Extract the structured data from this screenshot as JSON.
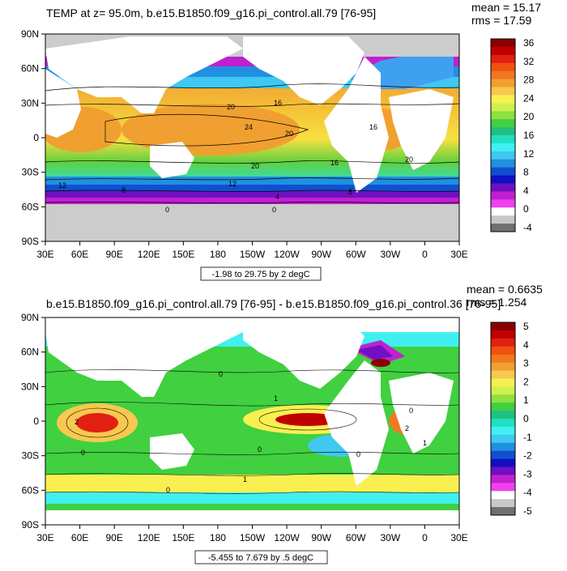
{
  "panels": [
    {
      "title": "TEMP at z=  95.0m, b.e15.B1850.f09_g16.pi_control.all.79 [76-95]",
      "stats": {
        "mean": "mean = 15.17",
        "rms": "rms = 17.59"
      },
      "range_label": "-1.98 to 29.75 by 2 degC",
      "colorbar": {
        "labels": [
          "36",
          "32",
          "28",
          "24",
          "20",
          "16",
          "12",
          "8",
          "4",
          "0",
          "-4"
        ],
        "colors": [
          "#8b0000",
          "#c00000",
          "#e02010",
          "#f05010",
          "#f07820",
          "#f0a030",
          "#f8c850",
          "#f8f050",
          "#d0f050",
          "#90e040",
          "#40d040",
          "#20c080",
          "#20e0c0",
          "#40f0f0",
          "#40c8f0",
          "#2090e0",
          "#1050d0",
          "#1010c0",
          "#7010c0",
          "#c020d0",
          "#f040f0",
          "#ffffff",
          "#c8c8c8",
          "#707070"
        ]
      },
      "contour_labels": [
        "24",
        "20",
        "20",
        "20",
        "20",
        "16",
        "16",
        "16",
        "12",
        "12",
        "8",
        "8",
        "4",
        "0",
        "0"
      ]
    },
    {
      "title": "b.e15.B1850.f09_g16.pi_control.all.79 [76-95] - b.e15.B1850.f09_g16.pi_control.36 [76-95]",
      "stats": {
        "mean": "mean = 0.6635",
        "rms": "rms = 1.254"
      },
      "range_label": "-5.455 to 7.679 by .5 degC",
      "colorbar": {
        "labels": [
          "5",
          "4",
          "3",
          "2",
          "1",
          "0",
          "-1",
          "-2",
          "-3",
          "-4",
          "-5"
        ],
        "colors": [
          "#8b0000",
          "#c00000",
          "#e02010",
          "#f05010",
          "#f07820",
          "#f0a030",
          "#f8c850",
          "#f8f050",
          "#d0f050",
          "#90e040",
          "#40d040",
          "#20c080",
          "#20e0c0",
          "#40f0f0",
          "#40c8f0",
          "#2090e0",
          "#1050d0",
          "#1010c0",
          "#7010c0",
          "#c020d0",
          "#f040f0",
          "#ffffff",
          "#c8c8c8",
          "#707070"
        ]
      },
      "contour_labels": [
        "0",
        "0",
        "0",
        "1",
        "1",
        "2",
        "2",
        "0",
        "0",
        "0",
        "1"
      ]
    }
  ],
  "axes": {
    "lat_ticks": [
      "90N",
      "60N",
      "30N",
      "0",
      "30S",
      "60S",
      "90S"
    ],
    "lon_ticks": [
      "30E",
      "60E",
      "90E",
      "120E",
      "150E",
      "180",
      "150W",
      "120W",
      "90W",
      "60W",
      "30W",
      "0",
      "30E"
    ]
  },
  "colors": {
    "land": "#ffffff",
    "ice": "#cccccc",
    "frame": "#000000"
  }
}
